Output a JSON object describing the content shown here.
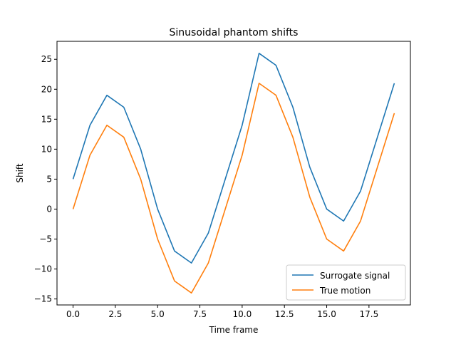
{
  "chart_data": {
    "type": "line",
    "title": "Sinusoidal phantom shifts",
    "xlabel": "Time frame",
    "ylabel": "Shift",
    "x": [
      0,
      1,
      2,
      3,
      4,
      5,
      6,
      7,
      8,
      9,
      10,
      11,
      12,
      13,
      14,
      15,
      16,
      17,
      18,
      19
    ],
    "series": [
      {
        "name": "Surrogate signal",
        "color": "#1f77b4",
        "values": [
          5,
          14,
          19,
          17,
          10,
          0,
          -7,
          -9,
          -4,
          5,
          14,
          26,
          24,
          17,
          7,
          0,
          -2,
          3,
          12,
          21
        ]
      },
      {
        "name": "True motion",
        "color": "#ff7f0e",
        "values": [
          0,
          9,
          14,
          12,
          5,
          -5,
          -12,
          -14,
          -9,
          0,
          9,
          21,
          19,
          12,
          2,
          -5,
          -7,
          -2,
          7,
          16
        ]
      }
    ],
    "xlim": [
      -0.95,
      19.95
    ],
    "ylim": [
      -16,
      28
    ],
    "xticks": [
      0,
      2.5,
      5,
      7.5,
      10,
      12.5,
      15,
      17.5
    ],
    "xtick_labels": [
      "0.0",
      "2.5",
      "5.0",
      "7.5",
      "10.0",
      "12.5",
      "15.0",
      "17.5"
    ],
    "yticks": [
      -15,
      -10,
      -5,
      0,
      5,
      10,
      15,
      20,
      25
    ],
    "ytick_labels": [
      "−15",
      "−10",
      "−5",
      "0",
      "5",
      "10",
      "15",
      "20",
      "25"
    ],
    "grid": false,
    "legend_position": "lower-right"
  }
}
